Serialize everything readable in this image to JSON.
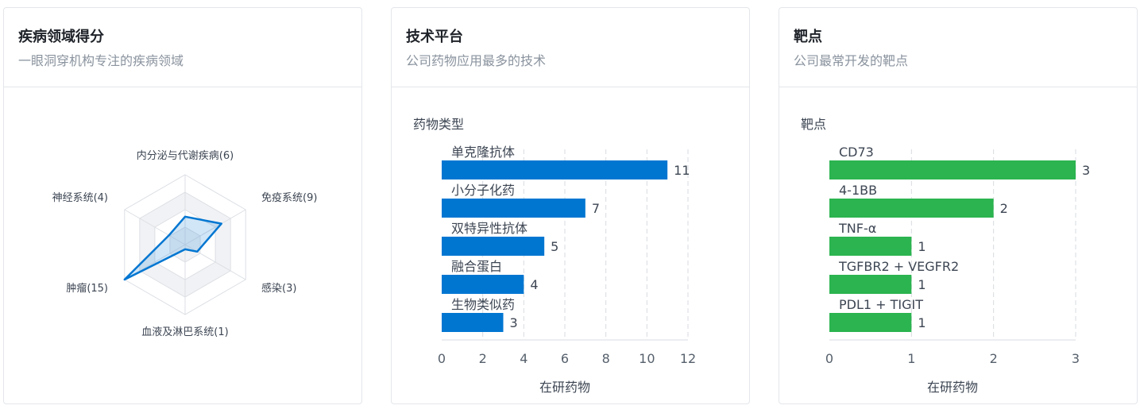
{
  "cards": [
    {
      "title": "疾病领域得分",
      "subtitle": "一眼洞穿机构专注的疾病领域"
    },
    {
      "title": "技术平台",
      "subtitle": "公司药物应用最多的技术"
    },
    {
      "title": "靶点",
      "subtitle": "公司最常开发的靶点"
    }
  ],
  "colors": {
    "blue": "#0076d1",
    "green": "#2bb44f"
  },
  "chart_data": [
    {
      "type": "radar",
      "axes": [
        "内分泌与代谢疾病",
        "免疫系统",
        "感染",
        "血液及淋巴系统",
        "肿瘤",
        "神经系统"
      ],
      "values": [
        6,
        9,
        3,
        1,
        15,
        4
      ],
      "labels": [
        "内分泌与代谢疾病(6)",
        "免疫系统(9)",
        "感染(3)",
        "血液及淋巴系统(1)",
        "肿瘤(15)",
        "神经系统(4)"
      ],
      "max": 15
    },
    {
      "type": "bar",
      "orientation": "horizontal",
      "category_title": "药物类型",
      "categories": [
        "单克隆抗体",
        "小分子化药",
        "双特异性抗体",
        "融合蛋白",
        "生物类似药"
      ],
      "values": [
        11,
        7,
        5,
        4,
        3
      ],
      "xlabel": "在研药物",
      "xlim": [
        0,
        12
      ],
      "xticks": [
        0,
        2,
        4,
        6,
        8,
        10,
        12
      ],
      "grid": true
    },
    {
      "type": "bar",
      "orientation": "horizontal",
      "category_title": "靶点",
      "categories": [
        "CD73",
        "4-1BB",
        "TNF-α",
        "TGFBR2 + VEGFR2",
        "PDL1 + TIGIT"
      ],
      "values": [
        3,
        2,
        1,
        1,
        1
      ],
      "xlabel": "在研药物",
      "xlim": [
        0,
        3
      ],
      "xticks": [
        0,
        1,
        2,
        3
      ],
      "grid": true
    }
  ]
}
